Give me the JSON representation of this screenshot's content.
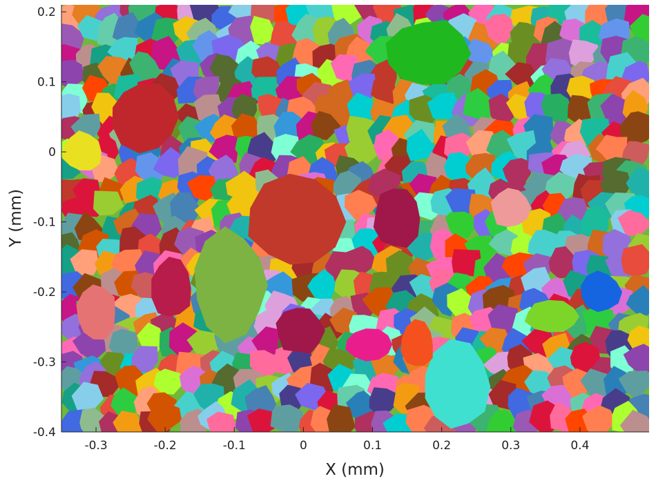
{
  "chart_data": {
    "type": "heatmap",
    "title": "",
    "xlabel": "X (mm)",
    "ylabel": "Y (mm)",
    "xlim": [
      -0.35,
      0.5
    ],
    "ylim": [
      -0.4,
      0.21
    ],
    "x_ticks": [
      -0.3,
      -0.2,
      -0.1,
      0,
      0.1,
      0.2,
      0.3,
      0.4
    ],
    "y_ticks": [
      -0.4,
      -0.3,
      -0.2,
      -0.1,
      0,
      0.1,
      0.2
    ],
    "x_tick_labels": [
      "-0.3",
      "-0.2",
      "-0.1",
      "0",
      "0.1",
      "0.2",
      "0.3",
      "0.4"
    ],
    "y_tick_labels": [
      "-0.4",
      "-0.3",
      "-0.2",
      "-0.1",
      "0",
      "0.1",
      "0.2"
    ],
    "grid": false,
    "colors": {
      "axis": "#222222",
      "background": "#ffffff"
    },
    "large_grains": [
      {
        "color": "#c0392b",
        "x": [
          -0.08,
          0.06
        ],
        "y": [
          -0.03,
          -0.17
        ]
      },
      {
        "color": "#c0272d",
        "x": [
          -0.28,
          -0.18
        ],
        "y": [
          0.1,
          0.0
        ]
      },
      {
        "color": "#7cb342",
        "x": [
          -0.16,
          -0.05
        ],
        "y": [
          -0.11,
          -0.27
        ]
      },
      {
        "color": "#a0184a",
        "x": [
          -0.04,
          0.03
        ],
        "y": [
          -0.22,
          -0.29
        ]
      },
      {
        "color": "#a0184a",
        "x": [
          0.1,
          0.17
        ],
        "y": [
          -0.05,
          -0.14
        ]
      },
      {
        "color": "#40e0d0",
        "x": [
          0.17,
          0.27
        ],
        "y": [
          -0.27,
          -0.4
        ]
      },
      {
        "color": "#1fb91f",
        "x": [
          0.12,
          0.24
        ],
        "y": [
          0.19,
          0.09
        ]
      },
      {
        "color": "#f4511e",
        "x": [
          0.14,
          0.19
        ],
        "y": [
          -0.24,
          -0.31
        ]
      },
      {
        "color": "#b71c4a",
        "x": [
          -0.22,
          -0.16
        ],
        "y": [
          -0.15,
          -0.24
        ]
      },
      {
        "color": "#e8e020",
        "x": [
          -0.35,
          -0.29
        ],
        "y": [
          0.03,
          -0.03
        ]
      },
      {
        "color": "#ef9a9a",
        "x": [
          0.27,
          0.33
        ],
        "y": [
          -0.05,
          -0.11
        ]
      },
      {
        "color": "#e57373",
        "x": [
          -0.33,
          -0.27
        ],
        "y": [
          -0.19,
          -0.27
        ]
      },
      {
        "color": "#7cd62a",
        "x": [
          0.32,
          0.4
        ],
        "y": [
          -0.21,
          -0.26
        ]
      },
      {
        "color": "#1565e0",
        "x": [
          0.4,
          0.46
        ],
        "y": [
          -0.17,
          -0.23
        ]
      },
      {
        "color": "#e91e8c",
        "x": [
          0.06,
          0.13
        ],
        "y": [
          -0.25,
          -0.3
        ]
      }
    ]
  }
}
